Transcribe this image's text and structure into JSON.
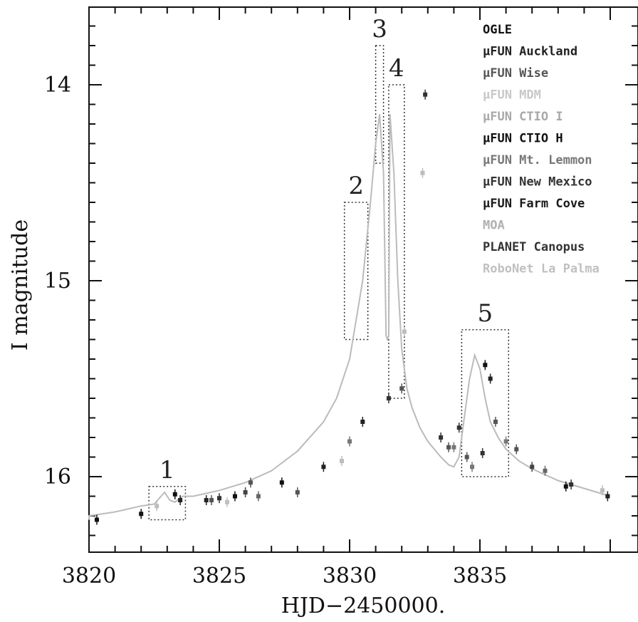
{
  "chart_data": {
    "type": "scatter",
    "title": "",
    "xlabel": "HJD−2450000.",
    "ylabel": "I magnitude",
    "xlim": [
      3820,
      3840
    ],
    "ylim": [
      16.4,
      13.6
    ],
    "y_inverted": true,
    "x_ticks": [
      "3820",
      "3825",
      "3830",
      "3835"
    ],
    "y_ticks": [
      "14",
      "15",
      "16"
    ],
    "grid": false,
    "legend_position": "top-right",
    "legend": [
      {
        "label": "OGLE",
        "color": "#111111"
      },
      {
        "label": "μFUN Auckland",
        "color": "#222222"
      },
      {
        "label": "μFUN Wise",
        "color": "#555555"
      },
      {
        "label": "μFUN MDM",
        "color": "#c8c8c8"
      },
      {
        "label": "μFUN CTIO I",
        "color": "#a8a8a8"
      },
      {
        "label": "μFUN CTIO H",
        "color": "#111111"
      },
      {
        "label": "μFUN Mt. Lemmon",
        "color": "#777777"
      },
      {
        "label": "μFUN New Mexico",
        "color": "#333333"
      },
      {
        "label": "μFUN Farm Cove",
        "color": "#1a1a1a"
      },
      {
        "label": "MOA",
        "color": "#b0b0b0"
      },
      {
        "label": "PLANET Canopus",
        "color": "#333333"
      },
      {
        "label": "RoboNet La Palma",
        "color": "#c0c0c0"
      }
    ],
    "boxes": [
      {
        "label": "1",
        "x": [
          3822.3,
          3823.7
        ],
        "y": [
          16.05,
          16.22
        ]
      },
      {
        "label": "2",
        "x": [
          3829.8,
          3830.7
        ],
        "y": [
          14.6,
          15.3
        ]
      },
      {
        "label": "3",
        "x": [
          3831.0,
          3831.3
        ],
        "y": [
          13.8,
          14.4
        ]
      },
      {
        "label": "4",
        "x": [
          3831.5,
          3832.1
        ],
        "y": [
          14.0,
          15.6
        ]
      },
      {
        "label": "5",
        "x": [
          3834.3,
          3836.1
        ],
        "y": [
          15.25,
          16.0
        ]
      }
    ],
    "model_curve": {
      "x": [
        3819.0,
        3820,
        3821,
        3822,
        3822.5,
        3822.9,
        3823.1,
        3823.3,
        3823.6,
        3824,
        3825,
        3826,
        3827,
        3828,
        3829,
        3829.5,
        3830,
        3830.5,
        3830.8,
        3831.0,
        3831.15,
        3831.3,
        3831.4,
        3831.45,
        3831.5,
        3831.55,
        3831.7,
        3831.85,
        3832.0,
        3832.2,
        3832.4,
        3832.7,
        3833.0,
        3833.5,
        3833.8,
        3834.0,
        3834.2,
        3834.4,
        3834.6,
        3834.8,
        3835.0,
        3835.2,
        3835.4,
        3835.7,
        3836.0,
        3836.5,
        3837,
        3838,
        3839,
        3840
      ],
      "y": [
        16.22,
        16.2,
        16.18,
        16.15,
        16.14,
        16.08,
        16.12,
        16.13,
        16.1,
        16.1,
        16.07,
        16.03,
        15.97,
        15.87,
        15.72,
        15.6,
        15.4,
        15.0,
        14.6,
        14.3,
        14.15,
        14.45,
        15.28,
        15.3,
        15.28,
        14.15,
        14.45,
        15.0,
        15.35,
        15.55,
        15.65,
        15.75,
        15.82,
        15.9,
        15.94,
        15.95,
        15.9,
        15.7,
        15.5,
        15.38,
        15.45,
        15.6,
        15.72,
        15.8,
        15.86,
        15.92,
        15.96,
        16.02,
        16.06,
        16.1
      ]
    },
    "points": [
      {
        "x": 3820.3,
        "y": 16.22,
        "c": "#111111"
      },
      {
        "x": 3822.0,
        "y": 16.19,
        "c": "#111111"
      },
      {
        "x": 3822.6,
        "y": 16.15,
        "c": "#bdbdbd"
      },
      {
        "x": 3823.3,
        "y": 16.09,
        "c": "#111111"
      },
      {
        "x": 3823.5,
        "y": 16.12,
        "c": "#222222"
      },
      {
        "x": 3824.5,
        "y": 16.12,
        "c": "#222222"
      },
      {
        "x": 3824.7,
        "y": 16.12,
        "c": "#555555"
      },
      {
        "x": 3825.0,
        "y": 16.11,
        "c": "#333333"
      },
      {
        "x": 3825.3,
        "y": 16.13,
        "c": "#c0c0c0"
      },
      {
        "x": 3825.6,
        "y": 16.1,
        "c": "#111111"
      },
      {
        "x": 3826.0,
        "y": 16.08,
        "c": "#444444"
      },
      {
        "x": 3826.2,
        "y": 16.03,
        "c": "#555555"
      },
      {
        "x": 3826.5,
        "y": 16.1,
        "c": "#666666"
      },
      {
        "x": 3827.4,
        "y": 16.03,
        "c": "#111111"
      },
      {
        "x": 3828.0,
        "y": 16.08,
        "c": "#555555"
      },
      {
        "x": 3829.0,
        "y": 15.95,
        "c": "#222222"
      },
      {
        "x": 3829.7,
        "y": 15.92,
        "c": "#bdbdbd"
      },
      {
        "x": 3830.0,
        "y": 15.82,
        "c": "#777777"
      },
      {
        "x": 3830.5,
        "y": 15.72,
        "c": "#222222"
      },
      {
        "x": 3831.5,
        "y": 15.6,
        "c": "#333333"
      },
      {
        "x": 3832.0,
        "y": 15.55,
        "c": "#555555"
      },
      {
        "x": 3832.1,
        "y": 15.26,
        "c": "#bdbdbd"
      },
      {
        "x": 3832.8,
        "y": 14.45,
        "c": "#bdbdbd"
      },
      {
        "x": 3832.9,
        "y": 14.05,
        "c": "#333333"
      },
      {
        "x": 3833.5,
        "y": 15.8,
        "c": "#333333"
      },
      {
        "x": 3833.8,
        "y": 15.85,
        "c": "#555555"
      },
      {
        "x": 3834.0,
        "y": 15.85,
        "c": "#777777"
      },
      {
        "x": 3834.2,
        "y": 15.75,
        "c": "#333333"
      },
      {
        "x": 3834.5,
        "y": 15.9,
        "c": "#555555"
      },
      {
        "x": 3834.7,
        "y": 15.95,
        "c": "#777777"
      },
      {
        "x": 3835.1,
        "y": 15.88,
        "c": "#333333"
      },
      {
        "x": 3835.2,
        "y": 15.43,
        "c": "#111111"
      },
      {
        "x": 3835.4,
        "y": 15.5,
        "c": "#222222"
      },
      {
        "x": 3835.6,
        "y": 15.72,
        "c": "#555555"
      },
      {
        "x": 3836.0,
        "y": 15.82,
        "c": "#777777"
      },
      {
        "x": 3836.4,
        "y": 15.86,
        "c": "#555555"
      },
      {
        "x": 3837.0,
        "y": 15.95,
        "c": "#444444"
      },
      {
        "x": 3837.5,
        "y": 15.97,
        "c": "#666666"
      },
      {
        "x": 3838.3,
        "y": 16.05,
        "c": "#111111"
      },
      {
        "x": 3838.5,
        "y": 16.04,
        "c": "#333333"
      },
      {
        "x": 3839.7,
        "y": 16.07,
        "c": "#bdbdbd"
      },
      {
        "x": 3839.9,
        "y": 16.1,
        "c": "#222222"
      }
    ]
  }
}
